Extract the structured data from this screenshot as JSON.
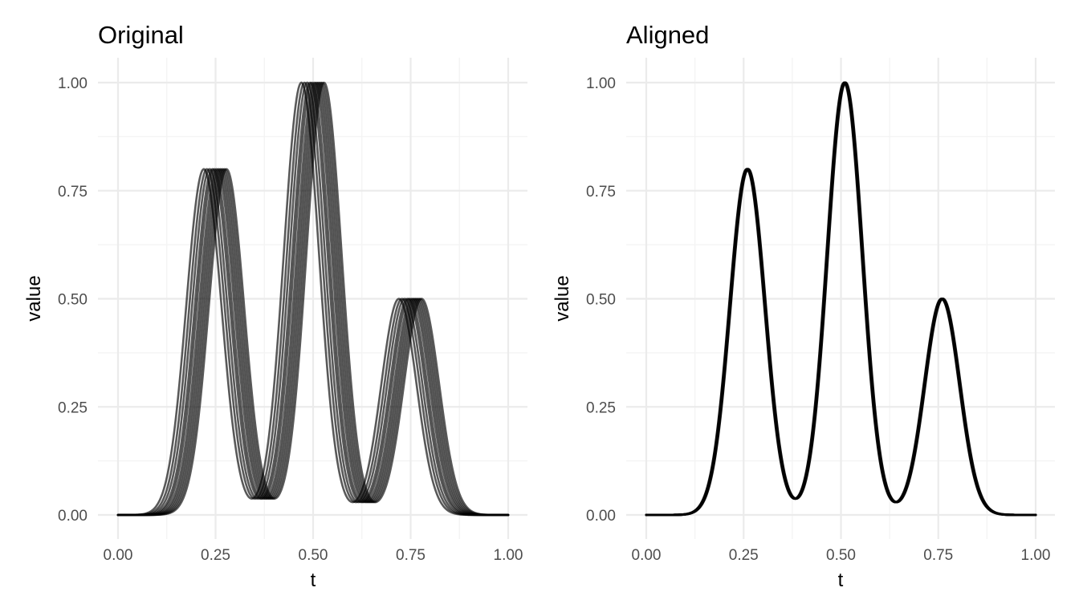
{
  "chart_data": [
    {
      "type": "line",
      "title": "Original",
      "xlabel": "t",
      "ylabel": "value",
      "xlim": [
        0,
        1
      ],
      "ylim": [
        0,
        1
      ],
      "x_ticks": [
        "0.00",
        "0.25",
        "0.50",
        "0.75",
        "1.00"
      ],
      "y_ticks": [
        "0.00",
        "0.25",
        "0.50",
        "0.75",
        "1.00"
      ],
      "grid": true,
      "curve_model": "sum of three gaussian peaks (heights 0.8, 1.0, 0.5) at t≈0.25, 0.50, 0.75, each curve shifted in t",
      "peak_heights": [
        0.8,
        1.0,
        0.5
      ],
      "peak_centers": [
        0.25,
        0.5,
        0.75
      ],
      "peak_width_sd": 0.045,
      "shifts": [
        -0.03,
        -0.022,
        -0.015,
        -0.008,
        -0.003,
        0.003,
        0.008,
        0.013,
        0.018,
        0.023,
        0.028
      ],
      "series_color": "#000000",
      "series_opacity": 0.65
    },
    {
      "type": "line",
      "title": "Aligned",
      "xlabel": "t",
      "ylabel": "value",
      "xlim": [
        0,
        1
      ],
      "ylim": [
        0,
        1
      ],
      "x_ticks": [
        "0.00",
        "0.25",
        "0.50",
        "0.75",
        "1.00"
      ],
      "y_ticks": [
        "0.00",
        "0.25",
        "0.50",
        "0.75",
        "1.00"
      ],
      "grid": true,
      "curve_model": "sum of three gaussian peaks (heights 0.8, 1.0, 0.5), all curves aligned",
      "peak_heights": [
        0.8,
        1.0,
        0.5
      ],
      "peak_centers": [
        0.26,
        0.51,
        0.76
      ],
      "peak_width_sd": 0.045,
      "shifts": [
        -0.002,
        -0.001,
        0.0,
        0.001,
        0.002
      ],
      "series_color": "#000000",
      "series_opacity": 0.85
    }
  ]
}
